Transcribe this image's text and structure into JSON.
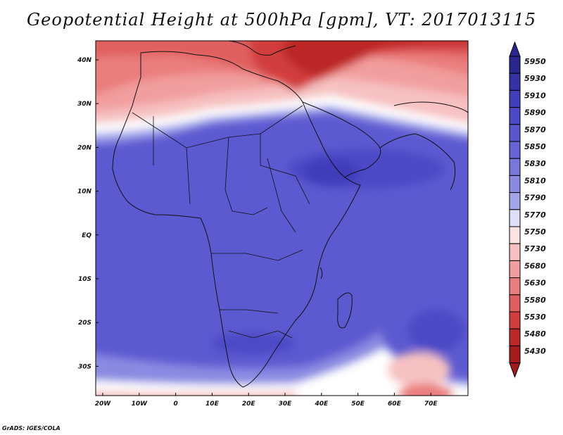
{
  "title": "Geopotential Height at 500hPa [gpm], VT: 2017013115",
  "footer": "GrADS: IGES/COLA",
  "axes": {
    "lon_ticks": [
      "20W",
      "10W",
      "0",
      "10E",
      "20E",
      "30E",
      "40E",
      "50E",
      "60E",
      "70E"
    ],
    "lat_ticks": [
      "40N",
      "30N",
      "20N",
      "10N",
      "EQ",
      "10S",
      "20S",
      "30S"
    ]
  },
  "colorbar": {
    "levels": [
      "5950",
      "5930",
      "5910",
      "5890",
      "5870",
      "5850",
      "5830",
      "5810",
      "5790",
      "5770",
      "5750",
      "5730",
      "5680",
      "5630",
      "5580",
      "5530",
      "5480",
      "5430"
    ],
    "colors": [
      "#2a2690",
      "#3532a8",
      "#413ebb",
      "#4c49c6",
      "#5855cf",
      "#6664d6",
      "#7877dc",
      "#8a8ae2",
      "#a3a5ea",
      "#dcdff6",
      "#fbe3e3",
      "#f6c1c1",
      "#f29e9e",
      "#ea7d7d",
      "#e05e5e",
      "#d23e3e",
      "#bc2828",
      "#a51a1a"
    ]
  }
}
